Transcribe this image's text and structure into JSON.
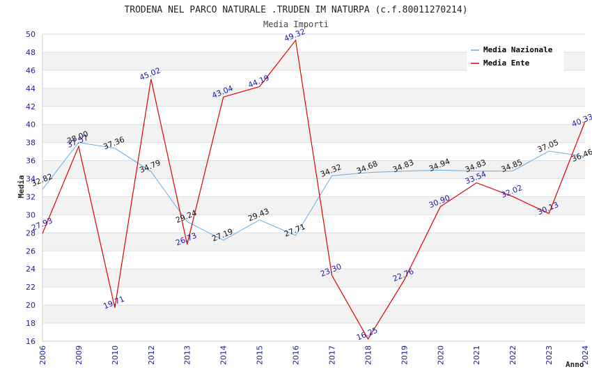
{
  "chart_data": {
    "type": "line",
    "title": "TRODENA NEL PARCO NATURALE .TRUDEN IM NATURPA (c.f.80011270214)",
    "subtitle": "Media Importi",
    "xlabel": "Anno",
    "ylabel": "Media",
    "categories": [
      "2006",
      "2009",
      "2010",
      "2012",
      "2013",
      "2014",
      "2015",
      "2016",
      "2017",
      "2018",
      "2019",
      "2020",
      "2021",
      "2022",
      "2023",
      "2024"
    ],
    "ylim": [
      16,
      50
    ],
    "yticks": [
      16,
      18,
      20,
      22,
      24,
      26,
      28,
      30,
      32,
      34,
      36,
      38,
      40,
      42,
      44,
      46,
      48,
      50
    ],
    "grid": true,
    "legend_position": "top-right",
    "series": [
      {
        "name": "Media Nazionale",
        "color": "#6aaae4",
        "values": [
          32.82,
          38.0,
          37.36,
          34.79,
          29.24,
          27.19,
          29.43,
          27.71,
          34.32,
          34.68,
          34.83,
          34.94,
          34.83,
          34.85,
          37.05,
          36.46
        ],
        "labels": [
          "32.82",
          "38.00",
          "37.36",
          "34.79",
          "29.24",
          "27.19",
          "29.43",
          "27.71",
          "34.32",
          "34.68",
          "34.83",
          "34.94",
          "34.83",
          "34.85",
          "37.05",
          "36.46"
        ]
      },
      {
        "name": "Media Ente",
        "color": "#e00000",
        "values": [
          27.93,
          37.57,
          19.71,
          45.02,
          26.73,
          43.04,
          44.19,
          49.32,
          23.3,
          16.25,
          22.76,
          30.9,
          33.54,
          32.02,
          30.13,
          40.33
        ],
        "labels": [
          "27.93",
          "37.57",
          "19.71",
          "45.02",
          "26.73",
          "43.04",
          "44.19",
          "49.32",
          "23.30",
          "16.25",
          "22.76",
          "30.90",
          "33.54",
          "32.02",
          "30.13",
          "40.33"
        ]
      }
    ]
  }
}
